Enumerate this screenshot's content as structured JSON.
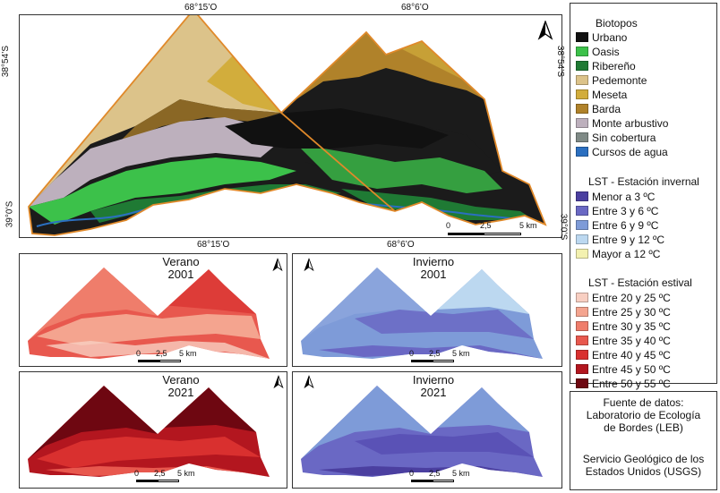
{
  "main_map": {
    "top_coords": [
      "68°15’O",
      "68°6’O"
    ],
    "bottom_coords": [
      "68°15’O",
      "68°6’O"
    ],
    "left_coords": [
      "38°54’S",
      "39°0’S"
    ],
    "right_coords": [
      "38°54’S",
      "39°0’S"
    ],
    "scale": {
      "labels": [
        "0",
        "2,5",
        "5 km"
      ]
    }
  },
  "small_maps": [
    {
      "title_line1": "Verano",
      "title_line2": "2001",
      "scale": {
        "labels": [
          "0",
          "2,5",
          "5 km"
        ]
      }
    },
    {
      "title_line1": "Invierno",
      "title_line2": "2001",
      "scale": {
        "labels": [
          "0",
          "2,5",
          "5 km"
        ]
      }
    },
    {
      "title_line1": "Verano",
      "title_line2": "2021",
      "scale": {
        "labels": [
          "0",
          "2,5",
          "5 km"
        ]
      }
    },
    {
      "title_line1": "Invierno",
      "title_line2": "2021",
      "scale": {
        "labels": [
          "0",
          "2,5",
          "5 km"
        ]
      }
    }
  ],
  "legend": {
    "biotopos": {
      "title": "Biotopos",
      "items": [
        {
          "label": "Urbano",
          "color": "#111111"
        },
        {
          "label": "Oasis",
          "color": "#3cc14a"
        },
        {
          "label": "Ribereño",
          "color": "#1f7a34"
        },
        {
          "label": "Pedemonte",
          "color": "#dcc38a"
        },
        {
          "label": "Meseta",
          "color": "#d2ad3c"
        },
        {
          "label": "Barda",
          "color": "#b0822a"
        },
        {
          "label": "Monte arbustivo",
          "color": "#bdb0bd"
        },
        {
          "label": "Sin cobertura",
          "color": "#7f8a86"
        },
        {
          "label": "Cursos de agua",
          "color": "#2b6fc0"
        }
      ]
    },
    "lst_invernal": {
      "title": "LST - Estación invernal",
      "items": [
        {
          "label": "Menor a 3 ºC",
          "color": "#4b3fa0"
        },
        {
          "label": "Entre 3 y 6 ºC",
          "color": "#6a68c4"
        },
        {
          "label": "Entre 6 y 9 ºC",
          "color": "#7e9bd8"
        },
        {
          "label": "Entre 9 y 12 ºC",
          "color": "#bcd8f0"
        },
        {
          "label": "Mayor a 12 ºC",
          "color": "#f3f1b0"
        }
      ]
    },
    "lst_estival": {
      "title": "LST - Estación estival",
      "items": [
        {
          "label": "Entre 20 y 25 ºC",
          "color": "#f8cfc2"
        },
        {
          "label": "Entre 25 y 30 ºC",
          "color": "#f4a48f"
        },
        {
          "label": "Entre 30 y 35 ºC",
          "color": "#ef7d6b"
        },
        {
          "label": "Entre 35 y 40 ºC",
          "color": "#e8584e"
        },
        {
          "label": "Entre 40 y 45 ºC",
          "color": "#d9302f"
        },
        {
          "label": "Entre 45 y 50 ºC",
          "color": "#b3161f"
        },
        {
          "label": "Entre 50 y 55 ºC",
          "color": "#6e0711"
        }
      ]
    }
  },
  "source": {
    "line1": "Fuente de datos:",
    "line2": "Laboratorio de Ecología",
    "line3": "de Bordes (LEB)",
    "line4": "Servicio Geológico de los",
    "line5": "Estados Unidos (USGS)"
  }
}
